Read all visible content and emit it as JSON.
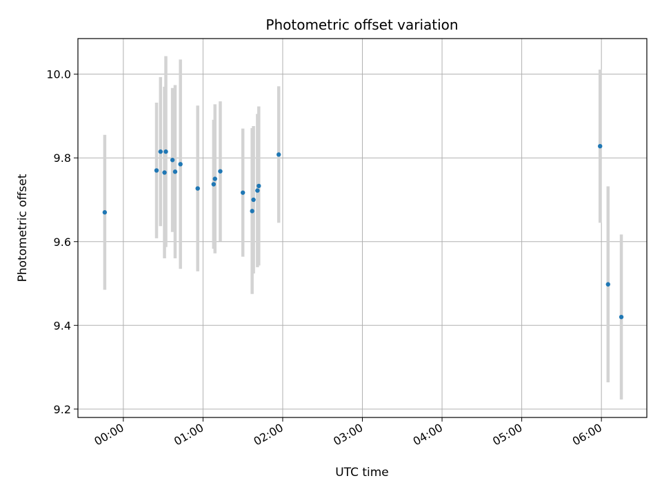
{
  "chart_data": {
    "type": "scatter",
    "title": "Photometric offset variation",
    "xlabel": "UTC time",
    "ylabel": "Photometric offset",
    "x_ticks": [
      "00:00",
      "01:00",
      "02:00",
      "03:00",
      "04:00",
      "05:00",
      "06:00"
    ],
    "x_tick_hours": [
      0,
      1,
      2,
      3,
      4,
      5,
      6
    ],
    "y_ticks": [
      "9.2",
      "9.4",
      "9.6",
      "9.8",
      "10.0"
    ],
    "y_tick_values": [
      9.2,
      9.4,
      9.6,
      9.8,
      10.0
    ],
    "xlim_hours": [
      -0.57,
      6.57
    ],
    "ylim": [
      9.18,
      10.085
    ],
    "grid": true,
    "marker_color": "#1f77b4",
    "errorbar_color": "#d3d3d3",
    "points": [
      {
        "t": "23:46",
        "y": 9.67,
        "err": 0.185
      },
      {
        "t": "00:25",
        "y": 9.77,
        "err": 0.162
      },
      {
        "t": "00:28",
        "y": 9.815,
        "err": 0.178
      },
      {
        "t": "00:31",
        "y": 9.765,
        "err": 0.205
      },
      {
        "t": "00:32",
        "y": 9.815,
        "err": 0.228
      },
      {
        "t": "00:37",
        "y": 9.795,
        "err": 0.172
      },
      {
        "t": "00:39",
        "y": 9.767,
        "err": 0.207
      },
      {
        "t": "00:43",
        "y": 9.785,
        "err": 0.25
      },
      {
        "t": "00:56",
        "y": 9.727,
        "err": 0.198
      },
      {
        "t": "01:08",
        "y": 9.737,
        "err": 0.154
      },
      {
        "t": "01:09",
        "y": 9.75,
        "err": 0.178
      },
      {
        "t": "01:13",
        "y": 9.768,
        "err": 0.167
      },
      {
        "t": "01:30",
        "y": 9.717,
        "err": 0.153
      },
      {
        "t": "01:37",
        "y": 9.673,
        "err": 0.198
      },
      {
        "t": "01:38",
        "y": 9.7,
        "err": 0.176
      },
      {
        "t": "01:41",
        "y": 9.722,
        "err": 0.183
      },
      {
        "t": "01:42",
        "y": 9.733,
        "err": 0.19
      },
      {
        "t": "01:57",
        "y": 9.808,
        "err": 0.163
      },
      {
        "t": "05:59",
        "y": 9.828,
        "err": 0.183
      },
      {
        "t": "06:05",
        "y": 9.498,
        "err": 0.234
      },
      {
        "t": "06:15",
        "y": 9.42,
        "err": 0.197
      }
    ]
  }
}
